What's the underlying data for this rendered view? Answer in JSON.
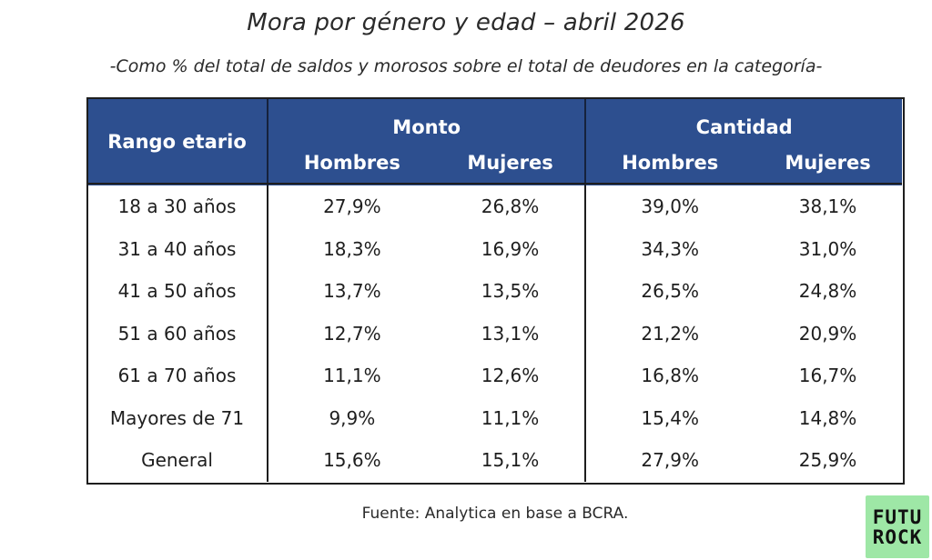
{
  "title": "Mora por género y edad – abril 2026",
  "subtitle": "-Como % del total de saldos y morosos sobre el total de deudores en la categoría-",
  "table": {
    "header": {
      "rango": "Rango etario",
      "group_monto": "Monto",
      "group_cantidad": "Cantidad",
      "hombres": "Hombres",
      "mujeres": "Mujeres"
    },
    "rows": [
      {
        "rango": "18 a 30 años",
        "monto_h": "27,9%",
        "monto_m": "26,8%",
        "cant_h": "39,0%",
        "cant_m": "38,1%"
      },
      {
        "rango": "31 a 40 años",
        "monto_h": "18,3%",
        "monto_m": "16,9%",
        "cant_h": "34,3%",
        "cant_m": "31,0%"
      },
      {
        "rango": "41 a 50 años",
        "monto_h": "13,7%",
        "monto_m": "13,5%",
        "cant_h": "26,5%",
        "cant_m": "24,8%"
      },
      {
        "rango": "51 a 60 años",
        "monto_h": "12,7%",
        "monto_m": "13,1%",
        "cant_h": "21,2%",
        "cant_m": "20,9%"
      },
      {
        "rango": "61 a 70 años",
        "monto_h": "11,1%",
        "monto_m": "12,6%",
        "cant_h": "16,8%",
        "cant_m": "16,7%"
      },
      {
        "rango": "Mayores de 71",
        "monto_h": "9,9%",
        "monto_m": "11,1%",
        "cant_h": "15,4%",
        "cant_m": "14,8%"
      },
      {
        "rango": "General",
        "monto_h": "15,6%",
        "monto_m": "15,1%",
        "cant_h": "27,9%",
        "cant_m": "25,9%"
      }
    ]
  },
  "source": "Fuente: Analytica en base a BCRA.",
  "logo": {
    "line1": "FUTU",
    "line2": "ROCK",
    "color": "#9ee7a6"
  },
  "colors": {
    "header_bg": "#2d4f8f",
    "header_text": "#ffffff"
  }
}
